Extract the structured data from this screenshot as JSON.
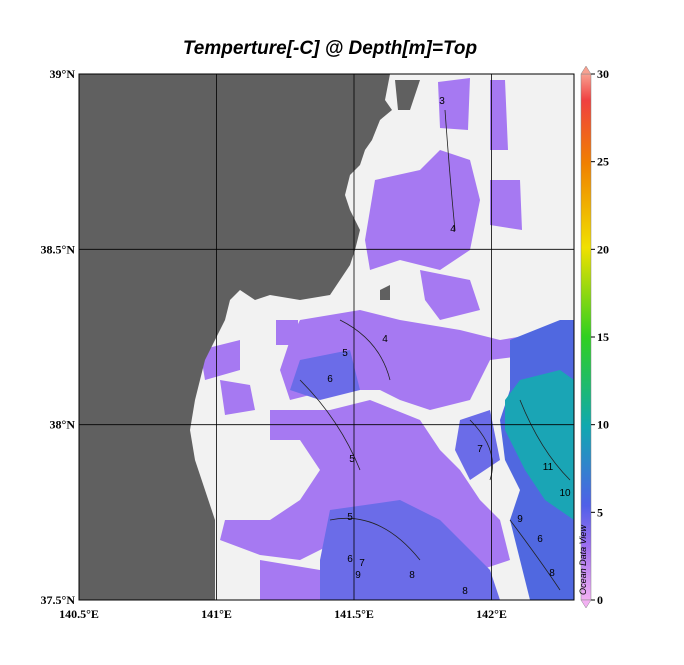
{
  "title": "Temperture[-C] @ Depth[m]=Top",
  "map": {
    "xlim": [
      140.5,
      142.3
    ],
    "ylim": [
      37.5,
      39
    ],
    "xticks": [
      {
        "value": 140.5,
        "label": "140.5°E"
      },
      {
        "value": 141,
        "label": "141°E"
      },
      {
        "value": 141.5,
        "label": "141.5°E"
      },
      {
        "value": 142,
        "label": "142°E"
      }
    ],
    "yticks": [
      {
        "value": 37.5,
        "label": "37.5°N"
      },
      {
        "value": 38,
        "label": "38°N"
      },
      {
        "value": 38.5,
        "label": "38.5°N"
      },
      {
        "value": 39,
        "label": "39°N"
      }
    ],
    "grid": true,
    "contour_labels": [
      3,
      4,
      4,
      5,
      6,
      5,
      5,
      6,
      7,
      9,
      8,
      8,
      7,
      11,
      10,
      9,
      6,
      8
    ]
  },
  "colorbar": {
    "lim": [
      0,
      30
    ],
    "ticks": [
      0,
      5,
      10,
      15,
      20,
      25,
      30
    ]
  },
  "watermark": "Ocean Data View"
}
